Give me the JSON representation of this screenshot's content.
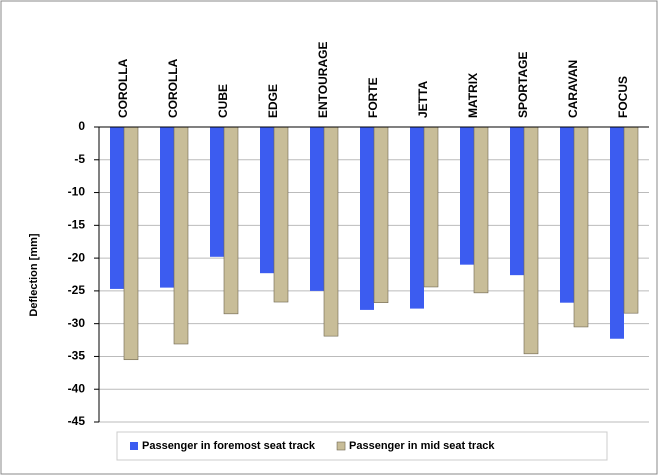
{
  "chart_data": {
    "type": "bar",
    "y_label": "Deflection [mm]",
    "categories": [
      "COROLLA",
      "COROLLA",
      "CUBE",
      "EDGE",
      "ENTOURAGE",
      "FORTE",
      "JETTA",
      "MATRIX",
      "SPORTAGE",
      "CARAVAN",
      "FOCUS"
    ],
    "series": [
      {
        "name": "Passenger in foremost seat track",
        "color": "#3c5cf0",
        "values": [
          -24.7,
          -24.5,
          -19.8,
          -22.3,
          -25.0,
          -27.9,
          -27.7,
          -21.0,
          -22.6,
          -26.8,
          -32.3
        ]
      },
      {
        "name": "Passenger in mid seat track",
        "color": "#c8bd98",
        "values": [
          -35.5,
          -33.1,
          -28.5,
          -26.7,
          -31.9,
          -26.8,
          -24.4,
          -25.3,
          -34.6,
          -30.5,
          -28.4
        ]
      }
    ],
    "ylim": [
      -45,
      0
    ],
    "yticks": [
      -45,
      -40,
      -35,
      -30,
      -25,
      -20,
      -15,
      -10,
      -5,
      0
    ],
    "grid": true,
    "legend": "bottom"
  }
}
